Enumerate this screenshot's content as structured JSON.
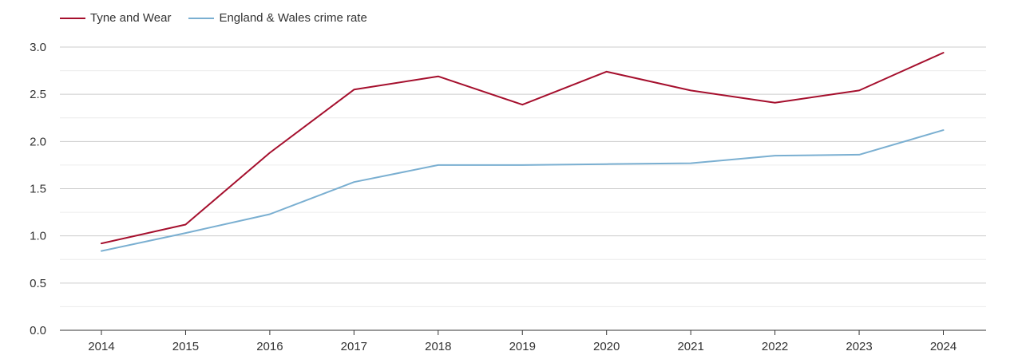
{
  "chart_data": {
    "type": "line",
    "title": "",
    "xlabel": "",
    "ylabel": "",
    "categories": [
      "2014",
      "2015",
      "2016",
      "2017",
      "2018",
      "2019",
      "2020",
      "2021",
      "2022",
      "2023",
      "2024"
    ],
    "series": [
      {
        "name": "Tyne and Wear",
        "color": "#a50f2d",
        "values": [
          0.92,
          1.12,
          1.88,
          2.55,
          2.69,
          2.39,
          2.74,
          2.54,
          2.41,
          2.54,
          2.94
        ]
      },
      {
        "name": "England & Wales crime rate",
        "color": "#7aafd1",
        "values": [
          0.84,
          1.03,
          1.23,
          1.57,
          1.75,
          1.75,
          1.76,
          1.77,
          1.85,
          1.86,
          2.12
        ]
      }
    ],
    "ylim": [
      0,
      3.0
    ],
    "yticks": [
      "0.0",
      "0.5",
      "1.0",
      "1.5",
      "2.0",
      "2.5",
      "3.0"
    ],
    "grid": true,
    "legend_position": "top-left"
  }
}
